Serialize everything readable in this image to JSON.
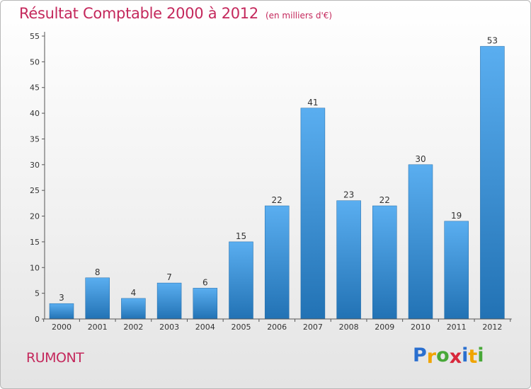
{
  "title": "Résultat Comptable 2000 à 2012",
  "subtitle": "(en milliers d'€)",
  "commune": "RUMONT",
  "logo": {
    "letters": [
      "P",
      "r",
      "o",
      "x",
      "i",
      "t",
      "i"
    ],
    "colors": [
      "#2a6fcf",
      "#f0a400",
      "#48a838",
      "#d8283c",
      "#2a6fcf",
      "#f0a400",
      "#48a838"
    ]
  },
  "colors": {
    "bar_top": "#5aaef0",
    "bar_bottom": "#2272b4",
    "title": "#c4285c"
  },
  "chart_data": {
    "type": "bar",
    "title": "Résultat Comptable 2000 à 2012",
    "subtitle": "(en milliers d'€)",
    "xlabel": "",
    "ylabel": "",
    "categories": [
      "2000",
      "2001",
      "2002",
      "2003",
      "2004",
      "2005",
      "2006",
      "2007",
      "2008",
      "2009",
      "2010",
      "2011",
      "2012"
    ],
    "values": [
      3,
      8,
      4,
      7,
      6,
      15,
      22,
      41,
      23,
      22,
      30,
      19,
      53
    ],
    "ylim": [
      0,
      55
    ],
    "yticks": [
      0,
      5,
      10,
      15,
      20,
      25,
      30,
      35,
      40,
      45,
      50,
      55
    ],
    "grid": false,
    "legend": "none"
  }
}
